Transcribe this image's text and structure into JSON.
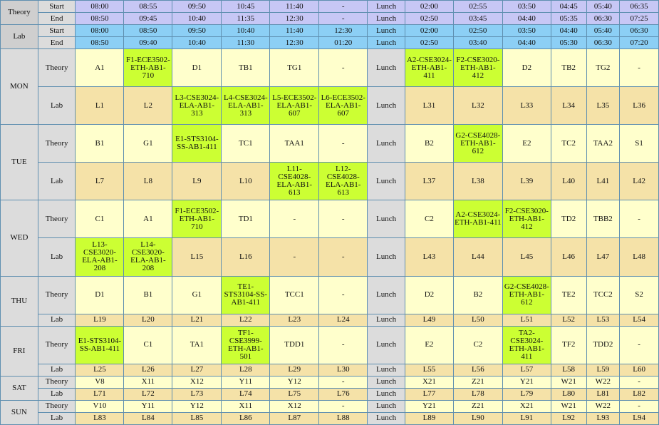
{
  "header": {
    "theory_label": "Theory",
    "lab_label": "Lab",
    "start_label": "Start",
    "end_label": "End",
    "theory_start": [
      "08:00",
      "08:55",
      "09:50",
      "10:45",
      "11:40",
      "-",
      "Lunch",
      "02:00",
      "02:55",
      "03:50",
      "04:45",
      "05:40",
      "06:35"
    ],
    "theory_end": [
      "08:50",
      "09:45",
      "10:40",
      "11:35",
      "12:30",
      "-",
      "Lunch",
      "02:50",
      "03:45",
      "04:40",
      "05:35",
      "06:30",
      "07:25"
    ],
    "lab_start": [
      "08:00",
      "08:50",
      "09:50",
      "10:40",
      "11:40",
      "12:30",
      "Lunch",
      "02:00",
      "02:50",
      "03:50",
      "04:40",
      "05:40",
      "06:30"
    ],
    "lab_end": [
      "08:50",
      "09:40",
      "10:40",
      "11:30",
      "12:30",
      "01:20",
      "Lunch",
      "02:50",
      "03:40",
      "04:40",
      "05:30",
      "06:30",
      "07:20"
    ]
  },
  "colors": {
    "theory": "#ffffcc",
    "lab": "#f5e2a8",
    "selected": "#ccff33",
    "grey": "#dcdcdc",
    "theory_header": "#c7c7f5",
    "lab_header": "#8ccff5",
    "border": "#5f8fb0"
  },
  "days": [
    {
      "name": "MON",
      "rows": [
        {
          "type": "Theory",
          "tall": true,
          "cells": [
            {
              "t": "A1"
            },
            {
              "t": "F1-ECE3502-ETH-AB1-710",
              "g": true
            },
            {
              "t": "D1"
            },
            {
              "t": "TB1"
            },
            {
              "t": "TG1"
            },
            {
              "t": "-"
            },
            {
              "t": "Lunch"
            },
            {
              "t": "A2-CSE3024-ETH-AB1-411",
              "g": true
            },
            {
              "t": "F2-CSE3020-ETH-AB1-412",
              "g": true
            },
            {
              "t": "D2"
            },
            {
              "t": "TB2"
            },
            {
              "t": "TG2"
            },
            {
              "t": "-"
            }
          ]
        },
        {
          "type": "Lab",
          "tall": true,
          "cells": [
            {
              "t": "L1"
            },
            {
              "t": "L2"
            },
            {
              "t": "L3-CSE3024-ELA-AB1-313",
              "g": true
            },
            {
              "t": "L4-CSE3024-ELA-AB1-313",
              "g": true
            },
            {
              "t": "L5-ECE3502-ELA-AB1-607",
              "g": true
            },
            {
              "t": "L6-ECE3502-ELA-AB1-607",
              "g": true
            },
            {
              "t": "Lunch"
            },
            {
              "t": "L31"
            },
            {
              "t": "L32"
            },
            {
              "t": "L33"
            },
            {
              "t": "L34"
            },
            {
              "t": "L35"
            },
            {
              "t": "L36"
            }
          ]
        }
      ]
    },
    {
      "name": "TUE",
      "rows": [
        {
          "type": "Theory",
          "tall": true,
          "cells": [
            {
              "t": "B1"
            },
            {
              "t": "G1"
            },
            {
              "t": "E1-STS3104-SS-AB1-411",
              "g": true
            },
            {
              "t": "TC1"
            },
            {
              "t": "TAA1"
            },
            {
              "t": "-"
            },
            {
              "t": "Lunch"
            },
            {
              "t": "B2"
            },
            {
              "t": "G2-CSE4028-ETH-AB1-612",
              "g": true
            },
            {
              "t": "E2"
            },
            {
              "t": "TC2"
            },
            {
              "t": "TAA2"
            },
            {
              "t": "S1"
            }
          ]
        },
        {
          "type": "Lab",
          "tall": true,
          "cells": [
            {
              "t": "L7"
            },
            {
              "t": "L8"
            },
            {
              "t": "L9"
            },
            {
              "t": "L10"
            },
            {
              "t": "L11-CSE4028-ELA-AB1-613",
              "g": true
            },
            {
              "t": "L12-CSE4028-ELA-AB1-613",
              "g": true
            },
            {
              "t": "Lunch"
            },
            {
              "t": "L37"
            },
            {
              "t": "L38"
            },
            {
              "t": "L39"
            },
            {
              "t": "L40"
            },
            {
              "t": "L41"
            },
            {
              "t": "L42"
            }
          ]
        }
      ]
    },
    {
      "name": "WED",
      "rows": [
        {
          "type": "Theory",
          "tall": true,
          "cells": [
            {
              "t": "C1"
            },
            {
              "t": "A1"
            },
            {
              "t": "F1-ECE3502-ETH-AB1-710",
              "g": true
            },
            {
              "t": "TD1"
            },
            {
              "t": "-"
            },
            {
              "t": "-"
            },
            {
              "t": "Lunch"
            },
            {
              "t": "C2"
            },
            {
              "t": "A2-CSE3024-ETH-AB1-411",
              "g": true
            },
            {
              "t": "F2-CSE3020-ETH-AB1-412",
              "g": true
            },
            {
              "t": "TD2"
            },
            {
              "t": "TBB2"
            },
            {
              "t": "-"
            }
          ]
        },
        {
          "type": "Lab",
          "tall": true,
          "cells": [
            {
              "t": "L13-CSE3020-ELA-AB1-208",
              "g": true
            },
            {
              "t": "L14-CSE3020-ELA-AB1-208",
              "g": true
            },
            {
              "t": "L15"
            },
            {
              "t": "L16"
            },
            {
              "t": "-"
            },
            {
              "t": "-"
            },
            {
              "t": "Lunch"
            },
            {
              "t": "L43"
            },
            {
              "t": "L44"
            },
            {
              "t": "L45"
            },
            {
              "t": "L46"
            },
            {
              "t": "L47"
            },
            {
              "t": "L48"
            }
          ]
        }
      ]
    },
    {
      "name": "THU",
      "rows": [
        {
          "type": "Theory",
          "tall": true,
          "cells": [
            {
              "t": "D1"
            },
            {
              "t": "B1"
            },
            {
              "t": "G1"
            },
            {
              "t": "TE1-STS3104-SS-AB1-411",
              "g": true
            },
            {
              "t": "TCC1"
            },
            {
              "t": "-"
            },
            {
              "t": "Lunch"
            },
            {
              "t": "D2"
            },
            {
              "t": "B2"
            },
            {
              "t": "G2-CSE4028-ETH-AB1-612",
              "g": true
            },
            {
              "t": "TE2"
            },
            {
              "t": "TCC2"
            },
            {
              "t": "S2"
            }
          ]
        },
        {
          "type": "Lab",
          "tall": false,
          "cells": [
            {
              "t": "L19"
            },
            {
              "t": "L20"
            },
            {
              "t": "L21"
            },
            {
              "t": "L22"
            },
            {
              "t": "L23"
            },
            {
              "t": "L24"
            },
            {
              "t": "Lunch"
            },
            {
              "t": "L49"
            },
            {
              "t": "L50"
            },
            {
              "t": "L51"
            },
            {
              "t": "L52"
            },
            {
              "t": "L53"
            },
            {
              "t": "L54"
            }
          ]
        }
      ]
    },
    {
      "name": "FRI",
      "rows": [
        {
          "type": "Theory",
          "tall": true,
          "cells": [
            {
              "t": "E1-STS3104-SS-AB1-411",
              "g": true
            },
            {
              "t": "C1"
            },
            {
              "t": "TA1"
            },
            {
              "t": "TF1-CSE3999-ETH-AB1-501",
              "g": true
            },
            {
              "t": "TDD1"
            },
            {
              "t": "-"
            },
            {
              "t": "Lunch"
            },
            {
              "t": "E2"
            },
            {
              "t": "C2"
            },
            {
              "t": "TA2-CSE3024-ETH-AB1-411",
              "g": true
            },
            {
              "t": "TF2"
            },
            {
              "t": "TDD2"
            },
            {
              "t": "-"
            }
          ]
        },
        {
          "type": "Lab",
          "tall": false,
          "cells": [
            {
              "t": "L25"
            },
            {
              "t": "L26"
            },
            {
              "t": "L27"
            },
            {
              "t": "L28"
            },
            {
              "t": "L29"
            },
            {
              "t": "L30"
            },
            {
              "t": "Lunch"
            },
            {
              "t": "L55"
            },
            {
              "t": "L56"
            },
            {
              "t": "L57"
            },
            {
              "t": "L58"
            },
            {
              "t": "L59"
            },
            {
              "t": "L60"
            }
          ]
        }
      ]
    },
    {
      "name": "SAT",
      "rows": [
        {
          "type": "Theory",
          "tall": false,
          "cells": [
            {
              "t": "V8"
            },
            {
              "t": "X11"
            },
            {
              "t": "X12"
            },
            {
              "t": "Y11"
            },
            {
              "t": "Y12"
            },
            {
              "t": "-"
            },
            {
              "t": "Lunch"
            },
            {
              "t": "X21"
            },
            {
              "t": "Z21"
            },
            {
              "t": "Y21"
            },
            {
              "t": "W21"
            },
            {
              "t": "W22"
            },
            {
              "t": "-"
            }
          ]
        },
        {
          "type": "Lab",
          "tall": false,
          "cells": [
            {
              "t": "L71"
            },
            {
              "t": "L72"
            },
            {
              "t": "L73"
            },
            {
              "t": "L74"
            },
            {
              "t": "L75"
            },
            {
              "t": "L76"
            },
            {
              "t": "Lunch"
            },
            {
              "t": "L77"
            },
            {
              "t": "L78"
            },
            {
              "t": "L79"
            },
            {
              "t": "L80"
            },
            {
              "t": "L81"
            },
            {
              "t": "L82"
            }
          ]
        }
      ]
    },
    {
      "name": "SUN",
      "rows": [
        {
          "type": "Theory",
          "tall": false,
          "cells": [
            {
              "t": "V10"
            },
            {
              "t": "Y11"
            },
            {
              "t": "Y12"
            },
            {
              "t": "X11"
            },
            {
              "t": "X12"
            },
            {
              "t": "-"
            },
            {
              "t": "Lunch"
            },
            {
              "t": "Y21"
            },
            {
              "t": "Z21"
            },
            {
              "t": "X21"
            },
            {
              "t": "W21"
            },
            {
              "t": "W22"
            },
            {
              "t": "-"
            }
          ]
        },
        {
          "type": "Lab",
          "tall": false,
          "cells": [
            {
              "t": "L83"
            },
            {
              "t": "L84"
            },
            {
              "t": "L85"
            },
            {
              "t": "L86"
            },
            {
              "t": "L87"
            },
            {
              "t": "L88"
            },
            {
              "t": "Lunch"
            },
            {
              "t": "L89"
            },
            {
              "t": "L90"
            },
            {
              "t": "L91"
            },
            {
              "t": "L92"
            },
            {
              "t": "L93"
            },
            {
              "t": "L94"
            }
          ]
        }
      ]
    }
  ]
}
